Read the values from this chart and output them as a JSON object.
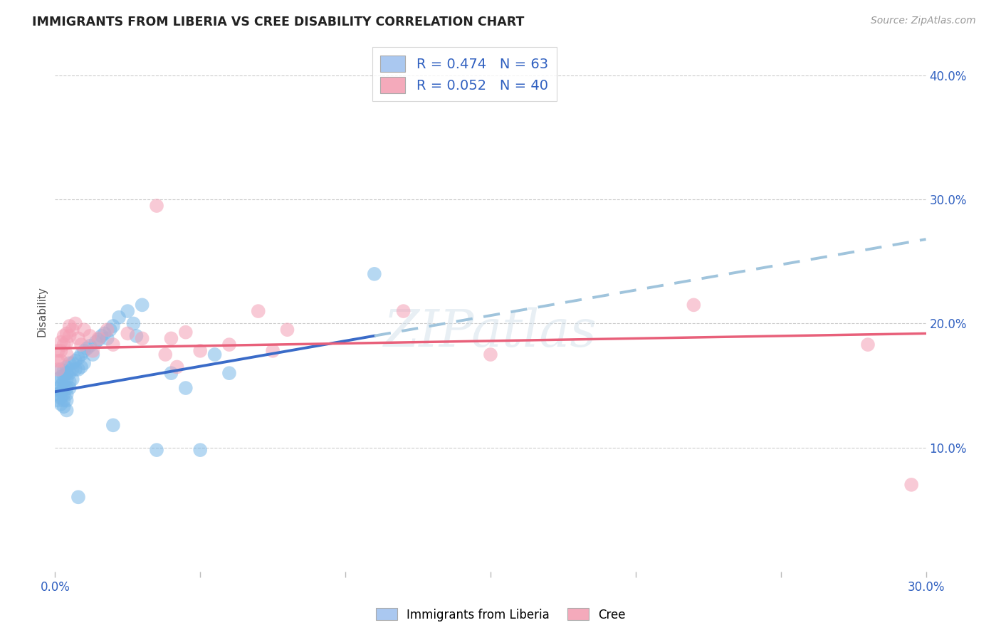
{
  "title": "IMMIGRANTS FROM LIBERIA VS CREE DISABILITY CORRELATION CHART",
  "source": "Source: ZipAtlas.com",
  "ylabel": "Disability",
  "xlim": [
    0.0,
    0.3
  ],
  "ylim": [
    0.0,
    0.42
  ],
  "xticks": [
    0.0,
    0.05,
    0.1,
    0.15,
    0.2,
    0.25,
    0.3
  ],
  "xtick_labels": [
    "0.0%",
    "",
    "",
    "",
    "",
    "",
    "30.0%"
  ],
  "yticks_right": [
    0.1,
    0.2,
    0.3,
    0.4
  ],
  "ytick_labels_right": [
    "10.0%",
    "20.0%",
    "30.0%",
    "40.0%"
  ],
  "legend_entries": [
    {
      "label": "R = 0.474   N = 63",
      "facecolor": "#aac8f0"
    },
    {
      "label": "R = 0.052   N = 40",
      "facecolor": "#f4aabb"
    }
  ],
  "liberia_scatter_color": "#7ab8e8",
  "cree_scatter_color": "#f4a0b5",
  "trendline_liberia_solid_color": "#3a6bc8",
  "trendline_liberia_dashed_color": "#a0c4dc",
  "trendline_cree_color": "#e8607a",
  "background_color": "#ffffff",
  "watermark": "ZIPatlas",
  "liberia_x": [
    0.001,
    0.001,
    0.001,
    0.001,
    0.002,
    0.002,
    0.002,
    0.002,
    0.002,
    0.002,
    0.003,
    0.003,
    0.003,
    0.003,
    0.003,
    0.003,
    0.003,
    0.004,
    0.004,
    0.004,
    0.004,
    0.004,
    0.004,
    0.004,
    0.005,
    0.005,
    0.005,
    0.005,
    0.006,
    0.006,
    0.006,
    0.007,
    0.007,
    0.008,
    0.008,
    0.009,
    0.009,
    0.01,
    0.01,
    0.011,
    0.012,
    0.013,
    0.014,
    0.015,
    0.016,
    0.017,
    0.018,
    0.019,
    0.02,
    0.022,
    0.025,
    0.027,
    0.028,
    0.03,
    0.035,
    0.04,
    0.045,
    0.05,
    0.055,
    0.06,
    0.11,
    0.02,
    0.008
  ],
  "liberia_y": [
    0.155,
    0.148,
    0.143,
    0.138,
    0.163,
    0.157,
    0.15,
    0.145,
    0.14,
    0.135,
    0.162,
    0.158,
    0.153,
    0.148,
    0.143,
    0.138,
    0.133,
    0.165,
    0.16,
    0.155,
    0.148,
    0.143,
    0.138,
    0.13,
    0.168,
    0.16,
    0.153,
    0.148,
    0.168,
    0.163,
    0.155,
    0.17,
    0.163,
    0.172,
    0.163,
    0.175,
    0.165,
    0.178,
    0.168,
    0.18,
    0.182,
    0.175,
    0.185,
    0.187,
    0.19,
    0.192,
    0.188,
    0.195,
    0.198,
    0.205,
    0.21,
    0.2,
    0.19,
    0.215,
    0.098,
    0.16,
    0.148,
    0.098,
    0.175,
    0.16,
    0.24,
    0.118,
    0.06
  ],
  "cree_x": [
    0.001,
    0.001,
    0.001,
    0.002,
    0.002,
    0.002,
    0.003,
    0.003,
    0.004,
    0.004,
    0.004,
    0.005,
    0.005,
    0.006,
    0.007,
    0.008,
    0.009,
    0.01,
    0.012,
    0.013,
    0.015,
    0.018,
    0.02,
    0.025,
    0.03,
    0.035,
    0.038,
    0.04,
    0.042,
    0.045,
    0.05,
    0.06,
    0.07,
    0.075,
    0.08,
    0.12,
    0.15,
    0.22,
    0.28,
    0.295
  ],
  "cree_y": [
    0.178,
    0.17,
    0.163,
    0.185,
    0.178,
    0.17,
    0.19,
    0.183,
    0.192,
    0.185,
    0.175,
    0.198,
    0.19,
    0.195,
    0.2,
    0.188,
    0.183,
    0.195,
    0.19,
    0.178,
    0.188,
    0.195,
    0.183,
    0.192,
    0.188,
    0.295,
    0.175,
    0.188,
    0.165,
    0.193,
    0.178,
    0.183,
    0.21,
    0.178,
    0.195,
    0.21,
    0.175,
    0.215,
    0.183,
    0.07
  ],
  "trendline_liberia_start_x": 0.0,
  "trendline_liberia_solid_end_x": 0.11,
  "trendline_liberia_end_x": 0.3,
  "trendline_liberia_start_y": 0.145,
  "trendline_liberia_end_y": 0.268,
  "trendline_cree_start_x": 0.0,
  "trendline_cree_end_x": 0.3,
  "trendline_cree_start_y": 0.18,
  "trendline_cree_end_y": 0.192
}
